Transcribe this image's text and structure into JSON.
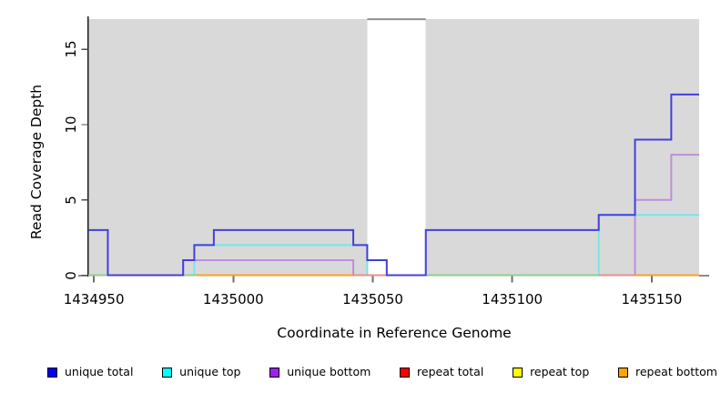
{
  "figure": {
    "background": "#ffffff"
  },
  "chart_data": {
    "type": "line",
    "subtype": "step-coverage",
    "title": "",
    "xlabel": "Coordinate in Reference Genome",
    "ylabel": "Read Coverage Depth",
    "xlim": [
      1434948,
      1435167
    ],
    "ylim": [
      0,
      17.1
    ],
    "x_ticks": [
      1434950,
      1435000,
      1435050,
      1435100,
      1435150
    ],
    "y_ticks": [
      0,
      5,
      10,
      15
    ],
    "grid": false,
    "legend_position": "bottom",
    "plot_background": "#ffffff",
    "shaded_region_color": "#d9d9d9",
    "shaded_regions": [
      {
        "from": 1434948,
        "to": 1435048
      },
      {
        "from": 1435069,
        "to": 1435167
      }
    ],
    "uncovered_gap": {
      "from": 1435048,
      "to": 1435069,
      "cap_value": 17,
      "cap_color": "#909090"
    },
    "series": [
      {
        "name": "unique total",
        "legend_color": "#0000ff",
        "line_color": "#4440db",
        "draw_order": 6,
        "points": [
          [
            1434948,
            3
          ],
          [
            1434955,
            0
          ],
          [
            1434982,
            1
          ],
          [
            1434986,
            2
          ],
          [
            1434993,
            3
          ],
          [
            1435043,
            2
          ],
          [
            1435048,
            1
          ],
          [
            1435055,
            0
          ],
          [
            1435069,
            3
          ],
          [
            1435131,
            4
          ],
          [
            1435144,
            9
          ],
          [
            1435157,
            12
          ],
          [
            1435167,
            12
          ]
        ]
      },
      {
        "name": "unique top",
        "legend_color": "#00ffff",
        "line_color": "#74e7e7",
        "draw_order": 4,
        "points": [
          [
            1434948,
            0
          ],
          [
            1434986,
            2
          ],
          [
            1435048,
            0
          ],
          [
            1435131,
            4
          ],
          [
            1435167,
            4
          ]
        ]
      },
      {
        "name": "unique bottom",
        "legend_color": "#a020f0",
        "line_color": "#bd8fdc",
        "draw_order": 5,
        "points": [
          [
            1434948,
            0
          ],
          [
            1434982,
            1
          ],
          [
            1435043,
            0
          ],
          [
            1435144,
            5
          ],
          [
            1435157,
            8
          ],
          [
            1435167,
            8
          ]
        ]
      },
      {
        "name": "repeat total",
        "legend_color": "#ff0000",
        "line_color": "#e88f8f",
        "draw_order": 1,
        "points": [
          [
            1434948,
            0
          ],
          [
            1435167,
            0
          ]
        ]
      },
      {
        "name": "repeat top",
        "legend_color": "#ffff00",
        "line_color": "#eded6a",
        "draw_order": 2,
        "points": [
          [
            1434948,
            0
          ],
          [
            1435167,
            0
          ]
        ]
      },
      {
        "name": "repeat bottom",
        "legend_color": "#ffa500",
        "line_color": "#ff9d20",
        "draw_order": 3,
        "points": [
          [
            1434948,
            0
          ],
          [
            1435167,
            0
          ]
        ]
      }
    ],
    "baseline_segments": [
      {
        "from": 1434948,
        "to": 1434987,
        "color": "#8ecf8e"
      },
      {
        "from": 1434987,
        "to": 1435043,
        "color": "#ff9d20"
      },
      {
        "from": 1435043,
        "to": 1435055,
        "color": "#e88f8f"
      },
      {
        "from": 1435069,
        "to": 1435131,
        "color": "#8ecf8e"
      },
      {
        "from": 1435131,
        "to": 1435144,
        "color": "#e88f8f"
      },
      {
        "from": 1435144,
        "to": 1435167,
        "color": "#ff9d20"
      }
    ]
  }
}
